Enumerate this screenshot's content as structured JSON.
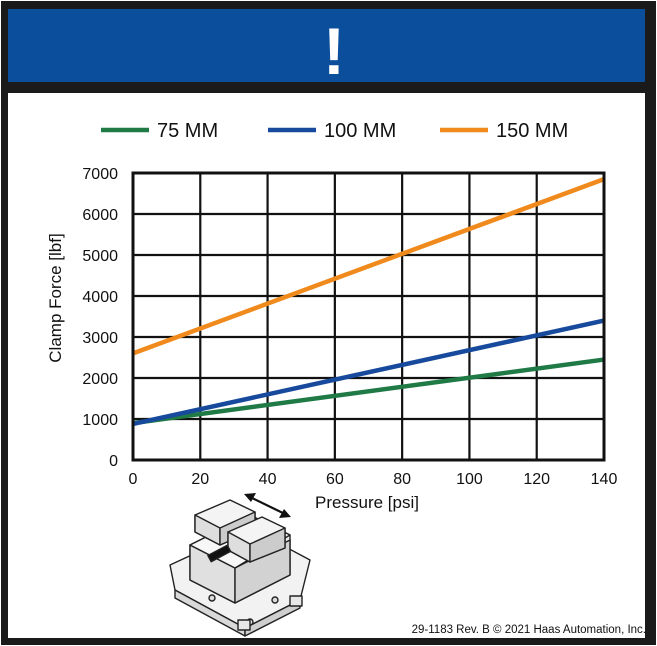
{
  "banner": {
    "symbol": "!",
    "color": "#0b4f9c"
  },
  "footer": {
    "text": "29-1183 Rev. B  © 2021 Haas Automation, Inc."
  },
  "illustration": {
    "icon": "vise-with-jaw-arrow-icon"
  },
  "chart_data": {
    "type": "line",
    "title": "",
    "xlabel": "Pressure [psi]",
    "ylabel": "Clamp Force [lbf]",
    "xlim": [
      0,
      140
    ],
    "ylim": [
      0,
      7000
    ],
    "xticks": [
      0,
      20,
      40,
      60,
      80,
      100,
      120,
      140
    ],
    "yticks": [
      0,
      1000,
      2000,
      3000,
      4000,
      5000,
      6000,
      7000
    ],
    "grid": true,
    "legend_position": "top",
    "series": [
      {
        "name": "75 MM",
        "color": "#1f7a45",
        "x": [
          0,
          140
        ],
        "y": [
          900,
          2450
        ]
      },
      {
        "name": "100 MM",
        "color": "#174a9c",
        "x": [
          0,
          140
        ],
        "y": [
          880,
          3400
        ]
      },
      {
        "name": "150 MM",
        "color": "#f08a1d",
        "x": [
          0,
          140
        ],
        "y": [
          2600,
          6850
        ]
      }
    ]
  }
}
